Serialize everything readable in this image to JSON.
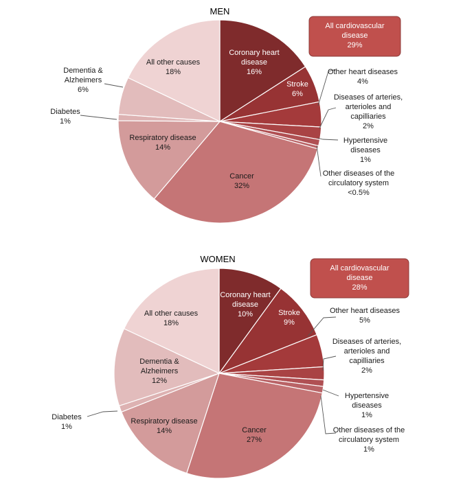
{
  "chart_data": [
    {
      "type": "pie",
      "title": "MEN",
      "callout": [
        "All cardiovascular",
        "disease",
        "29%"
      ],
      "slices": [
        {
          "label": [
            "Coronary heart",
            "disease",
            "16%"
          ],
          "value": 16.0,
          "color": "#7f2b2c"
        },
        {
          "label": [
            "Stroke",
            "6%"
          ],
          "value": 6.0,
          "color": "#973334"
        },
        {
          "label": [
            "Other heart diseases",
            "4%"
          ],
          "value": 4.0,
          "color": "#a43a3b"
        },
        {
          "label": [
            "Diseases of arteries,",
            "arterioles and",
            "capilliaries",
            "2%"
          ],
          "value": 2.0,
          "color": "#a94344"
        },
        {
          "label": [
            "Hypertensive",
            "diseases",
            "1%"
          ],
          "value": 1.0,
          "color": "#b05053"
        },
        {
          "label": [
            "Other diseases of the",
            "circulatory system",
            "<0.5%"
          ],
          "value": 0.5,
          "color": "#b96366"
        },
        {
          "label": [
            "Cancer",
            "32%"
          ],
          "value": 32.0,
          "color": "#c57576"
        },
        {
          "label": [
            "Respiratory disease",
            "14%"
          ],
          "value": 14.0,
          "color": "#d39b9b"
        },
        {
          "label": [
            "Diabetes",
            "1%"
          ],
          "value": 1.0,
          "color": "#ddb2b2"
        },
        {
          "label": [
            "Dementia &",
            "Alzheimers",
            "6%"
          ],
          "value": 6.0,
          "color": "#e2bcbc"
        },
        {
          "label": [
            "All other causes",
            "18%"
          ],
          "value": 18.0,
          "color": "#efd3d3"
        }
      ]
    },
    {
      "type": "pie",
      "title": "WOMEN",
      "callout": [
        "All cardiovascular",
        "disease",
        "28%"
      ],
      "slices": [
        {
          "label": [
            "Coronary heart",
            "disease",
            "10%"
          ],
          "value": 10.0,
          "color": "#7f2b2c"
        },
        {
          "label": [
            "Stroke",
            "9%"
          ],
          "value": 9.0,
          "color": "#973334"
        },
        {
          "label": [
            "Other heart diseases",
            "5%"
          ],
          "value": 5.0,
          "color": "#a43a3b"
        },
        {
          "label": [
            "Diseases of arteries,",
            "arterioles and",
            "capilliaries",
            "2%"
          ],
          "value": 2.0,
          "color": "#a94344"
        },
        {
          "label": [
            "Hypertensive",
            "diseases",
            "1%"
          ],
          "value": 1.0,
          "color": "#b05053"
        },
        {
          "label": [
            "Other diseases of the",
            "circulatory system",
            "1%"
          ],
          "value": 1.0,
          "color": "#b96366"
        },
        {
          "label": [
            "Cancer",
            "27%"
          ],
          "value": 27.0,
          "color": "#c57576"
        },
        {
          "label": [
            "Respiratory disease",
            "14%"
          ],
          "value": 14.0,
          "color": "#d39b9b"
        },
        {
          "label": [
            "Diabetes",
            "1%"
          ],
          "value": 1.0,
          "color": "#ddb2b2"
        },
        {
          "label": [
            "Dementia &",
            "Alzheimers",
            "12%"
          ],
          "value": 12.0,
          "color": "#e2bcbc"
        },
        {
          "label": [
            "All other causes",
            "18%"
          ],
          "value": 18.0,
          "color": "#efd3d3"
        }
      ]
    }
  ]
}
